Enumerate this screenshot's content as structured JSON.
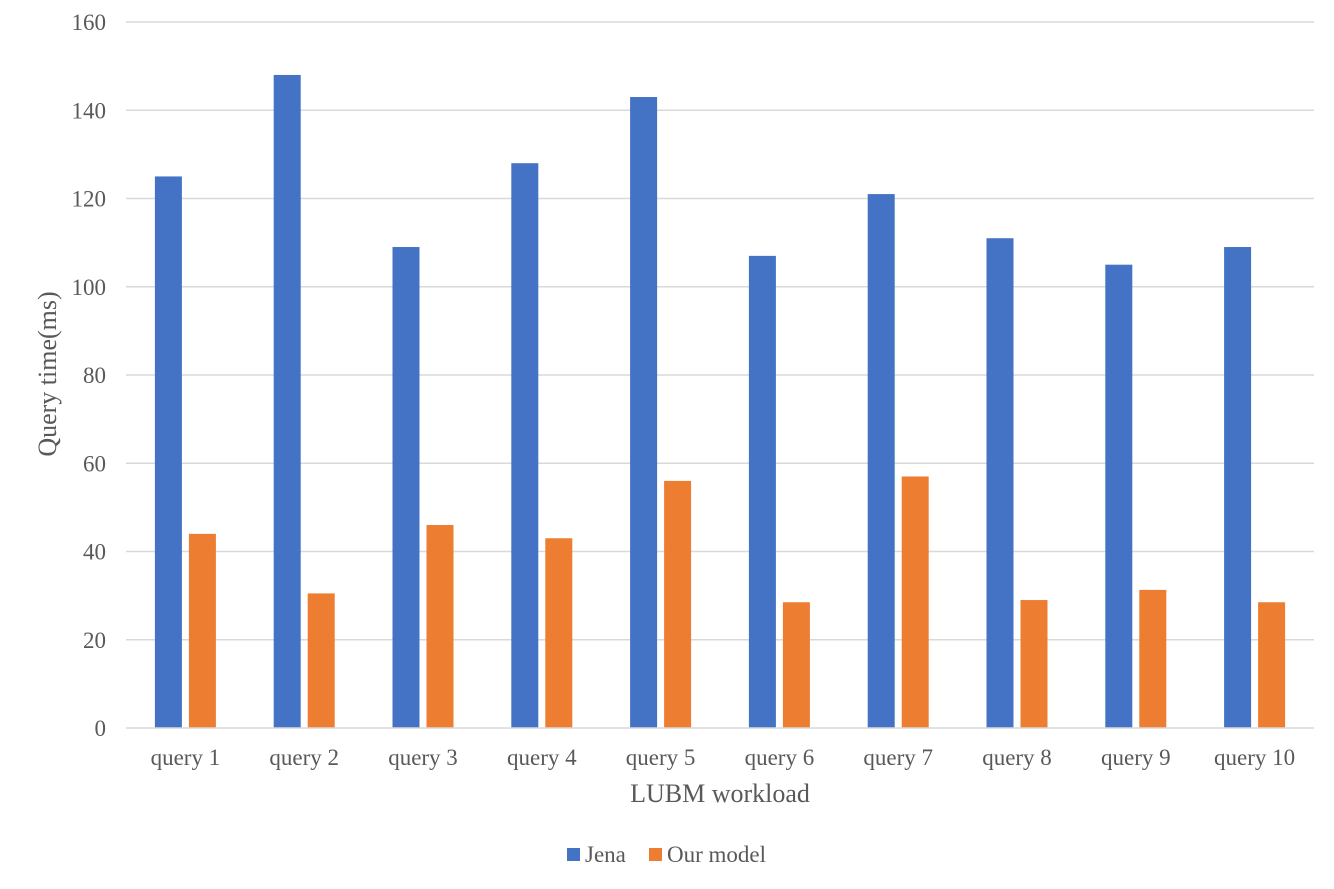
{
  "chart_data": {
    "type": "bar",
    "title": "",
    "xlabel": "LUBM workload",
    "ylabel": "Query time(ms)",
    "ylim": [
      0,
      160
    ],
    "ytick_step": 20,
    "grid": true,
    "legend_position": "bottom",
    "categories": [
      "query 1",
      "query 2",
      "query 3",
      "query 4",
      "query 5",
      "query 6",
      "query 7",
      "query 8",
      "query 9",
      "query 10"
    ],
    "series": [
      {
        "name": "Jena",
        "color": "#4472C4",
        "values": [
          125,
          148,
          109,
          128,
          143,
          107,
          121,
          111,
          105,
          109
        ]
      },
      {
        "name": "Our model",
        "color": "#ED7D31",
        "values": [
          44,
          30.5,
          46,
          43,
          56,
          28.5,
          57,
          29,
          31.3,
          28.5
        ]
      }
    ]
  }
}
